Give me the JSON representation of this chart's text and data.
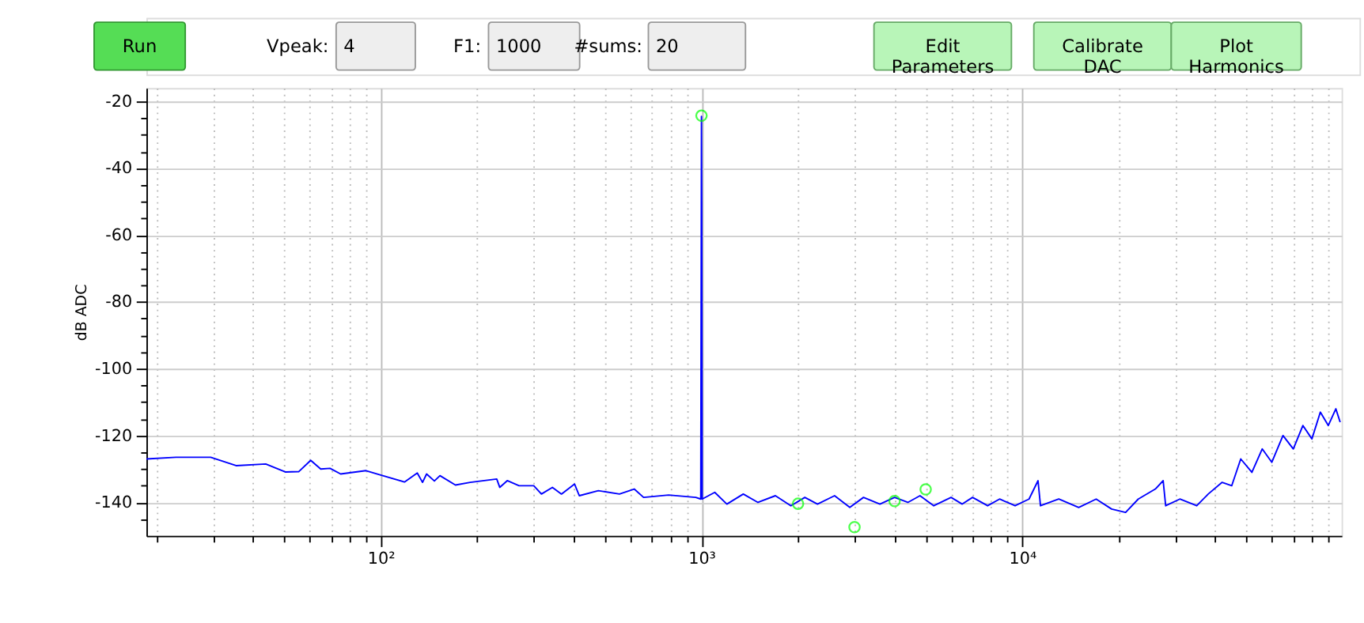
{
  "chart_data": {
    "type": "line",
    "ylabel": "dB ADC",
    "annotations": [
      "Run",
      "Vpeak:",
      "4",
      "F1:",
      "1000",
      "#sums:",
      "20",
      "Edit Parameters",
      "Calibrate DAC",
      "Plot Harmonics"
    ],
    "series": [
      {
        "color": "#0000ff",
        "x": [
          18.6,
          23,
          29.5,
          35.4,
          43.8,
          50.4,
          55.5,
          60.5,
          65,
          69.5,
          75,
          90,
          100,
          118.6,
          130,
          135,
          139,
          147,
          153,
          171,
          190,
          230,
          235,
          248,
          270,
          300,
          317,
          343,
          366,
          402,
          416,
          477,
          555,
          617,
          660,
          790,
          960,
          995,
          1000,
          1002,
          1005,
          1100,
          1200,
          1350,
          1500,
          1700,
          1900,
          2100,
          2300,
          2600,
          2900,
          3200,
          3600,
          4000,
          4400,
          4800,
          5300,
          6000,
          6500,
          7000,
          7800,
          8500,
          9500,
          10500,
          11200,
          11400,
          13000,
          15000,
          17000,
          19000,
          21000,
          23000,
          26000,
          27500,
          28000,
          31000,
          35000,
          38000,
          42000,
          45000,
          48000,
          52000,
          56000,
          60000,
          65000,
          70000,
          75000,
          80000,
          85000,
          90000,
          95000,
          98000
        ],
        "values": [
          -127,
          -126.5,
          -126.5,
          -129,
          -128.5,
          -130.9,
          -130.8,
          -127.4,
          -130,
          -129.8,
          -131.5,
          -130.5,
          -131.8,
          -133.9,
          -131.2,
          -134,
          -131.5,
          -133.6,
          -132,
          -134.8,
          -134,
          -133,
          -135.5,
          -133.5,
          -135,
          -135,
          -137.5,
          -135.5,
          -137.5,
          -134.5,
          -138,
          -136.5,
          -137.5,
          -136,
          -138.5,
          -137.8,
          -138.5,
          -139,
          -24.5,
          -50,
          -139,
          -137,
          -140.5,
          -137.5,
          -140,
          -138,
          -141,
          -138.5,
          -140.5,
          -138,
          -141.5,
          -138.5,
          -140.5,
          -138.5,
          -140,
          -138,
          -141,
          -138.5,
          -140.5,
          -138.5,
          -141,
          -139,
          -141,
          -139,
          -133.5,
          -141,
          -139,
          -141.5,
          -139,
          -142,
          -143,
          -139,
          -136,
          -133.5,
          -141,
          -139,
          -141,
          -137.5,
          -134,
          -135,
          -127,
          -131,
          -124,
          -128,
          -120,
          -124,
          -117,
          -121,
          -113,
          -117,
          -112,
          -116
        ]
      },
      {
        "type": "scatter",
        "color": "#00ff00",
        "marker": "circle",
        "x": [
          1000,
          2000,
          3000,
          4000,
          5000
        ],
        "values": [
          -24.3,
          -140.4,
          -147.4,
          -139.6,
          -136.1
        ]
      }
    ],
    "xlim": [
      18.6,
      99000
    ],
    "xticks": [
      {
        "value": 20,
        "label": null
      },
      {
        "value": 30,
        "label": null
      },
      {
        "value": 40,
        "label": null
      },
      {
        "value": 50,
        "label": null
      },
      {
        "value": 60,
        "label": null
      },
      {
        "value": 70,
        "label": null
      },
      {
        "value": 80,
        "label": null
      },
      {
        "value": 90,
        "label": null
      },
      {
        "value": 100,
        "label": "10²"
      },
      {
        "value": 200,
        "label": null
      },
      {
        "value": 300,
        "label": null
      },
      {
        "value": 400,
        "label": null
      },
      {
        "value": 500,
        "label": null
      },
      {
        "value": 600,
        "label": null
      },
      {
        "value": 700,
        "label": null
      },
      {
        "value": 800,
        "label": null
      },
      {
        "value": 900,
        "label": null
      },
      {
        "value": 1000,
        "label": "10³"
      },
      {
        "value": 2000,
        "label": null
      },
      {
        "value": 3000,
        "label": null
      },
      {
        "value": 4000,
        "label": null
      },
      {
        "value": 5000,
        "label": null
      },
      {
        "value": 6000,
        "label": null
      },
      {
        "value": 7000,
        "label": null
      },
      {
        "value": 8000,
        "label": null
      },
      {
        "value": 9000,
        "label": null
      },
      {
        "value": 10000,
        "label": "10⁴"
      },
      {
        "value": 20000,
        "label": null
      },
      {
        "value": 30000,
        "label": null
      },
      {
        "value": 40000,
        "label": null
      },
      {
        "value": 50000,
        "label": null
      },
      {
        "value": 60000,
        "label": null
      },
      {
        "value": 70000,
        "label": null
      },
      {
        "value": 80000,
        "label": null
      },
      {
        "value": 90000,
        "label": null
      }
    ],
    "ylim": [
      -150,
      -16
    ],
    "yticks": [
      {
        "value": -145,
        "label": null
      },
      -140,
      {
        "value": -135,
        "label": null
      },
      {
        "value": -130,
        "label": null
      },
      {
        "value": -125,
        "label": null
      },
      -120,
      {
        "value": -115,
        "label": null
      },
      {
        "value": -110,
        "label": null
      },
      {
        "value": -105,
        "label": null
      },
      -100,
      {
        "value": -95,
        "label": null
      },
      {
        "value": -90,
        "label": null
      },
      {
        "value": -85,
        "label": null
      },
      -80,
      {
        "value": -75,
        "label": null
      },
      {
        "value": -70,
        "label": null
      },
      {
        "value": -65,
        "label": null
      },
      -60,
      {
        "value": -55,
        "label": null
      },
      {
        "value": -50,
        "label": null
      },
      {
        "value": -45,
        "label": null
      },
      -40,
      {
        "value": -35,
        "label": null
      },
      {
        "value": -30,
        "label": null
      },
      {
        "value": -25,
        "label": null
      },
      -20
    ],
    "grid": true,
    "log": "x"
  }
}
